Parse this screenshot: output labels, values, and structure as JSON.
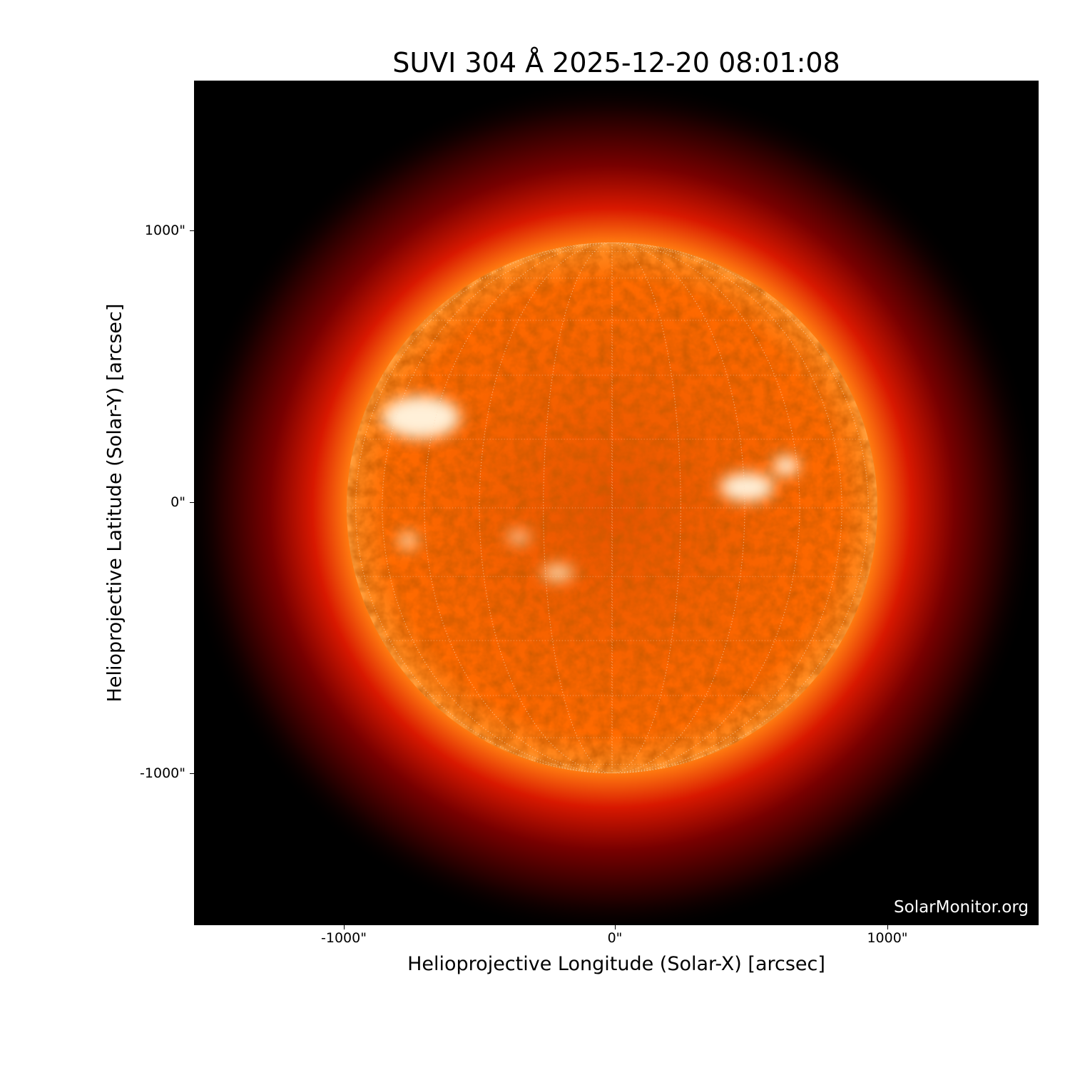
{
  "chart_data": {
    "type": "image",
    "title": "SUVI 304 Å 2025-12-20 08:01:08",
    "xlabel": "Helioprojective Longitude (Solar-X) [arcsec]",
    "ylabel": "Helioprojective Latitude (Solar-Y) [arcsec]",
    "xlim": [
      -1550,
      1550
    ],
    "ylim": [
      -1550,
      1550
    ],
    "xticks": [
      {
        "value": -1000,
        "label": "-1000\""
      },
      {
        "value": 0,
        "label": "0\""
      },
      {
        "value": 1000,
        "label": "1000\""
      }
    ],
    "yticks": [
      {
        "value": 1000,
        "label": "1000\""
      },
      {
        "value": 0,
        "label": "0\""
      },
      {
        "value": -1000,
        "label": "-1000\""
      }
    ],
    "colormap": "SDO/SUVI 304 (black-red-orange-white)",
    "grid": "heliographic, 15° spacing, dotted",
    "solar_radius_arcsec": 975,
    "watermark": "SolarMonitor.org",
    "colors": {
      "background": "#000000",
      "disk": "#ff6a00",
      "limb_glow": "#b00000",
      "bright": "#fff2e0"
    }
  }
}
